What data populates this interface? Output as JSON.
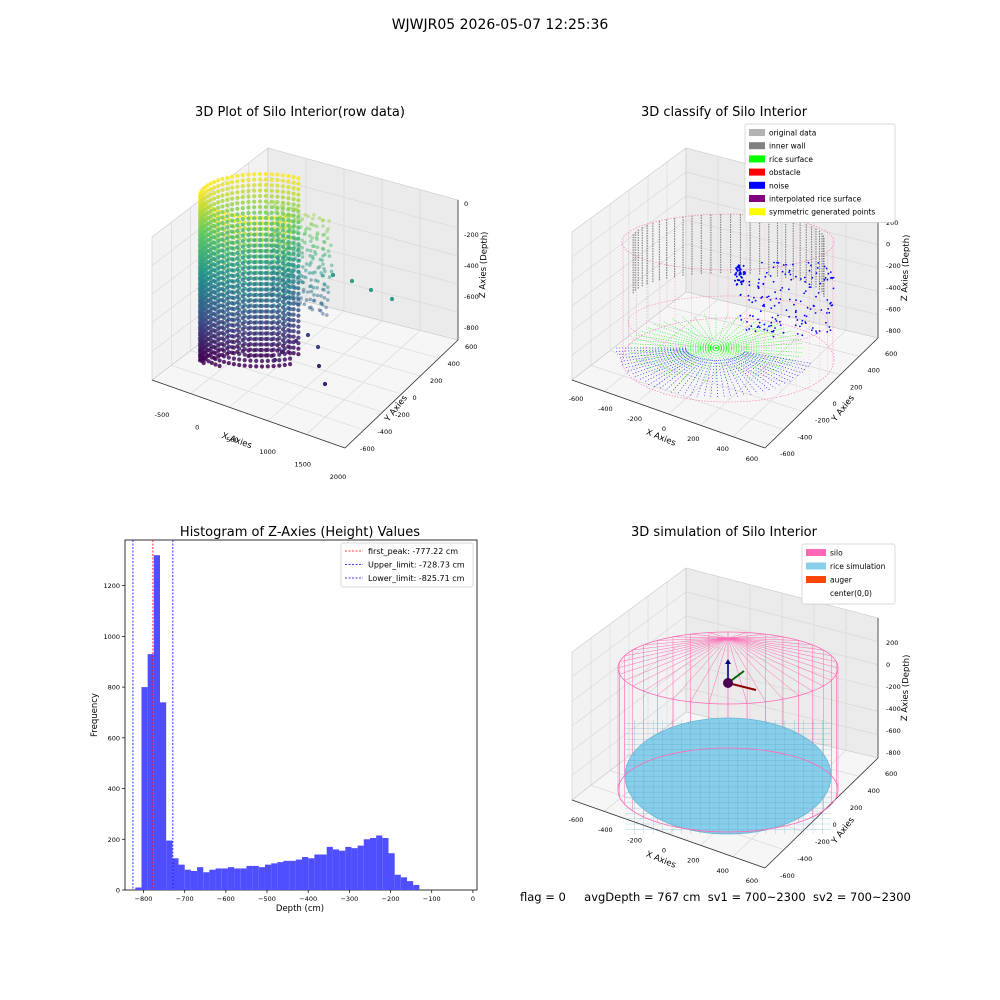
{
  "figure": {
    "suptitle": "WJWJR05 2026-05-07 12:25:36",
    "status": {
      "flag": "flag = 0",
      "avg_depth": "avgDepth = 767 cm",
      "sv1": "sv1 = 700~2300",
      "sv2": "sv2 = 700~2300"
    }
  },
  "colors": {
    "viridis_dark": "#440154",
    "viridis_mid": "#21918c",
    "viridis_light": "#fde725",
    "hist_bar": "#4f4fff",
    "silo_pink": "#ff69b4",
    "rice_sky": "#87ceeb"
  },
  "chart_data": [
    {
      "type": "scatter",
      "title": "3D Plot of Silo Interior(row data)",
      "projection": "3d",
      "xlabel": "X Axies",
      "ylabel": "Y Axies",
      "zlabel": "Z Axies (Depth)",
      "xticks": [
        "-500",
        "0",
        "500",
        "1000",
        "1500",
        "2000"
      ],
      "yticks": [
        "-600",
        "-400",
        "-200",
        "0",
        "200",
        "400",
        "600"
      ],
      "zticks": [
        "0",
        "-200",
        "-400",
        "-600",
        "-800"
      ],
      "xlim": [
        -600,
        2000
      ],
      "ylim": [
        -650,
        650
      ],
      "zlim": [
        -900,
        0
      ],
      "colormap": "viridis",
      "grid": true
    },
    {
      "type": "scatter",
      "title": "3D classify of Silo Interior",
      "projection": "3d",
      "xlabel": "X Axies",
      "ylabel": "Y Axies",
      "zlabel": "Z Axies (Depth)",
      "xticks": [
        "-600",
        "-400",
        "-200",
        "0",
        "200",
        "400",
        "600"
      ],
      "yticks": [
        "-600",
        "-400",
        "-200",
        "0",
        "200",
        "400",
        "600"
      ],
      "zticks": [
        "200",
        "0",
        "-200",
        "-400",
        "-600",
        "-800"
      ],
      "xlim": [
        -650,
        650
      ],
      "ylim": [
        -650,
        650
      ],
      "zlim": [
        -900,
        250
      ],
      "legend_position": "upper-right",
      "legend": [
        {
          "label": "original data",
          "color": "#b3b3b3"
        },
        {
          "label": "inner wall",
          "color": "#808080"
        },
        {
          "label": "rice surface",
          "color": "#00ff00"
        },
        {
          "label": "obstacle",
          "color": "#ff0000"
        },
        {
          "label": "noise",
          "color": "#0000ff"
        },
        {
          "label": "interpolated rice surface",
          "color": "#800080"
        },
        {
          "label": "symmetric generated points",
          "color": "#ffff00"
        }
      ],
      "grid": true
    },
    {
      "type": "bar",
      "title": "Histogram of Z-Axies (Height) Values",
      "xlabel": "Depth (cm)",
      "ylabel": "Frequency",
      "xticks": [
        -800,
        -700,
        -600,
        -500,
        -400,
        -300,
        -200,
        -100,
        0
      ],
      "yticks": [
        0,
        200,
        400,
        600,
        800,
        1000,
        1200
      ],
      "xlim": [
        -845,
        10
      ],
      "ylim": [
        0,
        1380
      ],
      "bin_start": -820,
      "bin_width": 15,
      "values": [
        10,
        800,
        930,
        1320,
        740,
        195,
        125,
        100,
        80,
        75,
        90,
        70,
        80,
        85,
        85,
        90,
        85,
        85,
        95,
        95,
        90,
        100,
        105,
        110,
        115,
        115,
        120,
        130,
        125,
        140,
        140,
        170,
        160,
        155,
        170,
        165,
        175,
        200,
        205,
        215,
        205,
        145,
        60,
        50,
        35,
        20
      ],
      "vlines": [
        {
          "label": "first_peak: -777.22 cm",
          "x": -777.22,
          "color": "#ff0000"
        },
        {
          "label": "Upper_limit: -728.73 cm",
          "x": -728.73,
          "color": "#0000ff"
        },
        {
          "label": "Lower_limit: -825.71 cm",
          "x": -825.71,
          "color": "#0000ff"
        }
      ],
      "legend_position": "upper-right",
      "grid": false
    },
    {
      "type": "scatter",
      "title": "3D simulation of Silo Interior",
      "projection": "3d",
      "xlabel": "X Axies",
      "ylabel": "Y Axies",
      "zlabel": "Z Axies (Depth)",
      "xticks": [
        "-600",
        "-400",
        "-200",
        "0",
        "200",
        "400",
        "600"
      ],
      "yticks": [
        "-600",
        "-400",
        "-200",
        "0",
        "200",
        "400",
        "600"
      ],
      "zticks": [
        "200",
        "0",
        "-200",
        "-400",
        "-600",
        "-800"
      ],
      "xlim": [
        -650,
        650
      ],
      "ylim": [
        -650,
        650
      ],
      "zlim": [
        -900,
        250
      ],
      "legend_position": "upper-right",
      "legend": [
        {
          "label": "silo",
          "color": "#ff69b4"
        },
        {
          "label": "rice simulation",
          "color": "#87ceeb"
        },
        {
          "label": "auger",
          "color": "#ff4500"
        },
        {
          "label": "center(0,0)",
          "color": "#ffffff"
        }
      ],
      "grid": true
    }
  ]
}
